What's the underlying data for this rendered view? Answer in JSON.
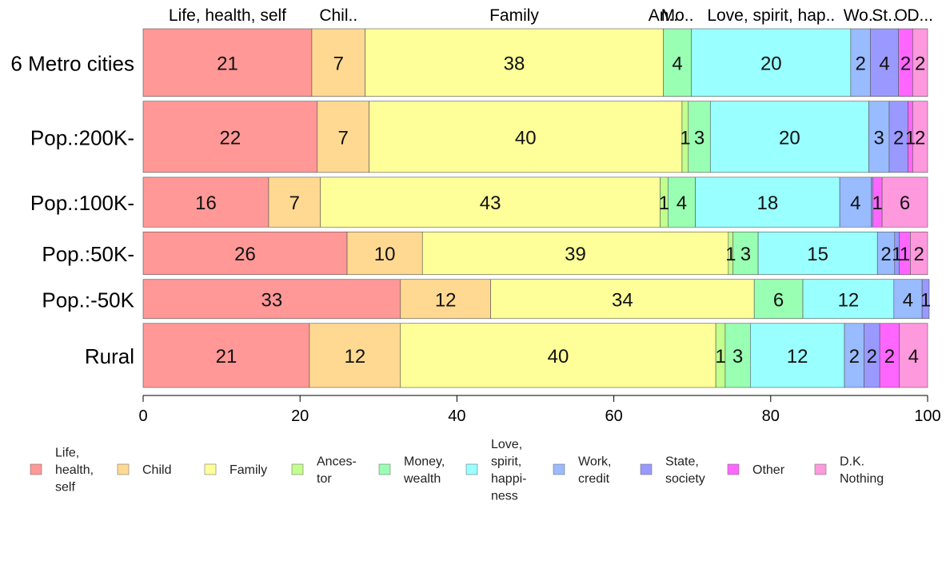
{
  "chart_data": {
    "type": "bar",
    "orientation": "horizontal",
    "stacked": true,
    "title": "",
    "xlabel": "",
    "ylabel": "",
    "xlim": [
      0,
      100
    ],
    "x_ticks": [
      "0",
      "20",
      "40",
      "60",
      "80",
      "100"
    ],
    "categories": [
      "6 Metro cities",
      "Pop.:200K-",
      "Pop.:100K-",
      "Pop.:50K-",
      "Pop.:-50K",
      "Rural"
    ],
    "category_shares": [
      0.19,
      0.2,
      0.14,
      0.12,
      0.11,
      0.18
    ],
    "top_labels": [
      "Life, health, self",
      "Chil..",
      "Family",
      "An..",
      "Mo..",
      "Love, spirit, hap..",
      "Wo..",
      "St..",
      "O..",
      "D..."
    ],
    "legend_position": "bottom",
    "series": [
      {
        "name": "Life, health, self",
        "legend_lines": [
          "Life,",
          "health,",
          "self"
        ],
        "color": "#ff9896",
        "values": [
          21.5,
          22.2,
          16.0,
          26.0,
          32.8,
          21.2
        ],
        "labels": [
          "21",
          "22",
          "16",
          "26",
          "33",
          "21"
        ]
      },
      {
        "name": "Child",
        "legend_lines": [
          "Child"
        ],
        "color": "#ffd991",
        "values": [
          6.8,
          6.6,
          6.6,
          9.6,
          11.5,
          11.6
        ],
        "labels": [
          "7",
          "7",
          "7",
          "10",
          "12",
          "12"
        ]
      },
      {
        "name": "Family",
        "legend_lines": [
          "Family"
        ],
        "color": "#ffff99",
        "values": [
          38.0,
          39.9,
          43.3,
          39.0,
          33.6,
          40.2
        ],
        "labels": [
          "38",
          "40",
          "43",
          "39",
          "34",
          "40"
        ]
      },
      {
        "name": "Ancestor",
        "legend_lines": [
          "Ances-",
          "tor"
        ],
        "color": "#c2ff8c",
        "values": [
          0.0,
          0.8,
          1.0,
          0.6,
          0.0,
          1.2
        ],
        "labels": [
          "",
          "1",
          "1",
          "1",
          "",
          "1"
        ]
      },
      {
        "name": "Money, wealth",
        "legend_lines": [
          "Money,",
          "wealth"
        ],
        "color": "#99ffb3",
        "values": [
          3.6,
          2.8,
          3.5,
          3.2,
          6.2,
          3.2
        ],
        "labels": [
          "4",
          "3",
          "4",
          "3",
          "6",
          "3"
        ]
      },
      {
        "name": "Love, spirit, happiness",
        "legend_lines": [
          "Love,",
          "spirit,",
          "happi-",
          "ness"
        ],
        "color": "#99ffff",
        "values": [
          20.3,
          20.2,
          18.4,
          15.2,
          11.6,
          12.0
        ],
        "labels": [
          "20",
          "20",
          "18",
          "15",
          "12",
          "12"
        ]
      },
      {
        "name": "Work, credit",
        "legend_lines": [
          "Work,",
          "credit"
        ],
        "color": "#99bbff",
        "values": [
          2.5,
          2.6,
          4.0,
          2.2,
          3.6,
          2.5
        ],
        "labels": [
          "2",
          "3",
          "4",
          "2",
          "4",
          "2"
        ]
      },
      {
        "name": "State, society",
        "legend_lines": [
          "State,",
          "society"
        ],
        "color": "#9999ff",
        "values": [
          3.6,
          2.4,
          0.2,
          0.6,
          0.9,
          2.0
        ],
        "labels": [
          "4",
          "2",
          "",
          "1",
          "1",
          "2"
        ]
      },
      {
        "name": "Other",
        "legend_lines": [
          "Other"
        ],
        "color": "#ff66ff",
        "values": [
          1.8,
          0.6,
          1.2,
          1.4,
          0.0,
          2.5
        ],
        "labels": [
          "2",
          "1",
          "1",
          "1",
          "",
          "2"
        ]
      },
      {
        "name": "D.K. Nothing",
        "legend_lines": [
          "D.K.",
          "Nothing"
        ],
        "color": "#ff99dd",
        "values": [
          1.9,
          1.9,
          5.8,
          2.2,
          0.0,
          3.6
        ],
        "labels": [
          "2",
          "2",
          "6",
          "2",
          "",
          "4"
        ]
      }
    ]
  }
}
